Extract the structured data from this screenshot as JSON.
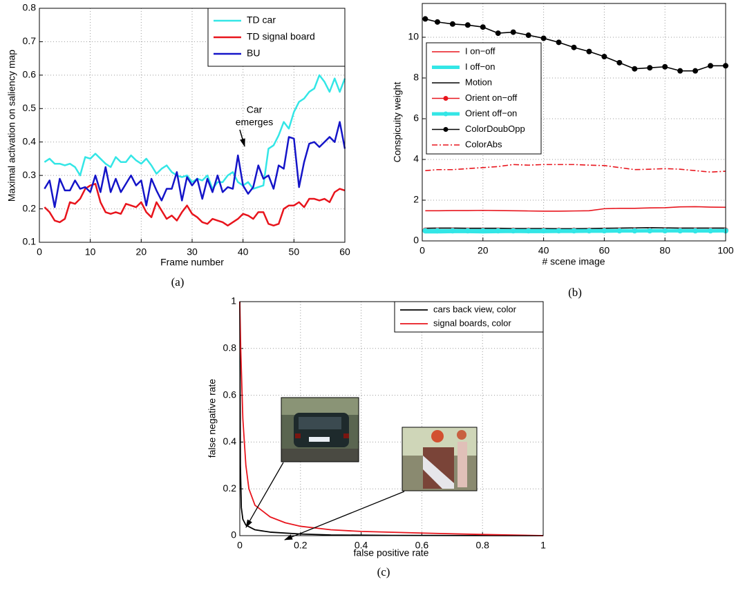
{
  "chart_data": [
    {
      "type": "line",
      "caption": "(a)",
      "xlabel": "Frame number",
      "ylabel": "Maximal activation on saliency map",
      "annotations": [
        "Car",
        "emerges"
      ],
      "x": [
        1,
        2,
        3,
        4,
        5,
        6,
        7,
        8,
        9,
        10,
        11,
        12,
        13,
        14,
        15,
        16,
        17,
        18,
        19,
        20,
        21,
        22,
        23,
        24,
        25,
        26,
        27,
        28,
        29,
        30,
        31,
        32,
        33,
        34,
        35,
        36,
        37,
        38,
        39,
        40,
        41,
        42,
        43,
        44,
        45,
        46,
        47,
        48,
        49,
        50,
        51,
        52,
        53,
        54,
        55,
        56,
        57,
        58,
        59,
        60
      ],
      "series": [
        {
          "name": "TD car",
          "color": "#33e6e6",
          "values": [
            0.34,
            0.35,
            0.335,
            0.335,
            0.33,
            0.335,
            0.325,
            0.3,
            0.355,
            0.35,
            0.365,
            0.35,
            0.335,
            0.325,
            0.355,
            0.34,
            0.34,
            0.36,
            0.345,
            0.335,
            0.35,
            0.33,
            0.305,
            0.32,
            0.33,
            0.31,
            0.3,
            0.295,
            0.3,
            0.28,
            0.29,
            0.285,
            0.3,
            0.26,
            0.28,
            0.28,
            0.3,
            0.31,
            0.28,
            0.27,
            0.28,
            0.26,
            0.265,
            0.27,
            0.38,
            0.39,
            0.42,
            0.46,
            0.44,
            0.49,
            0.52,
            0.53,
            0.55,
            0.56,
            0.6,
            0.58,
            0.55,
            0.59,
            0.55,
            0.59
          ]
        },
        {
          "name": "TD signal board",
          "color": "#e8141c",
          "values": [
            0.205,
            0.19,
            0.165,
            0.16,
            0.17,
            0.22,
            0.215,
            0.23,
            0.26,
            0.27,
            0.275,
            0.22,
            0.19,
            0.185,
            0.19,
            0.185,
            0.215,
            0.21,
            0.205,
            0.22,
            0.19,
            0.175,
            0.22,
            0.195,
            0.17,
            0.18,
            0.165,
            0.19,
            0.21,
            0.185,
            0.175,
            0.16,
            0.155,
            0.17,
            0.165,
            0.16,
            0.15,
            0.16,
            0.17,
            0.185,
            0.18,
            0.17,
            0.19,
            0.19,
            0.155,
            0.15,
            0.155,
            0.2,
            0.21,
            0.21,
            0.22,
            0.205,
            0.23,
            0.23,
            0.225,
            0.23,
            0.22,
            0.25,
            0.26,
            0.255
          ]
        },
        {
          "name": "BU",
          "color": "#1414c8",
          "values": [
            0.26,
            0.285,
            0.205,
            0.29,
            0.255,
            0.255,
            0.285,
            0.26,
            0.265,
            0.25,
            0.3,
            0.25,
            0.325,
            0.25,
            0.29,
            0.25,
            0.275,
            0.3,
            0.27,
            0.285,
            0.21,
            0.29,
            0.255,
            0.225,
            0.26,
            0.26,
            0.31,
            0.225,
            0.295,
            0.27,
            0.29,
            0.23,
            0.29,
            0.25,
            0.3,
            0.25,
            0.265,
            0.26,
            0.36,
            0.27,
            0.245,
            0.265,
            0.33,
            0.29,
            0.3,
            0.26,
            0.33,
            0.32,
            0.415,
            0.41,
            0.265,
            0.34,
            0.395,
            0.4,
            0.385,
            0.4,
            0.415,
            0.4,
            0.46,
            0.38
          ]
        }
      ],
      "xlim": [
        0,
        60
      ],
      "xticks": [
        0,
        10,
        20,
        30,
        40,
        50,
        60
      ],
      "ylim": [
        0.1,
        0.8
      ],
      "yticks": [
        0.1,
        0.2,
        0.3,
        0.4,
        0.5,
        0.6,
        0.7,
        0.8
      ],
      "grid": true,
      "legend": "upper right"
    },
    {
      "type": "line",
      "caption": "(b)",
      "xlabel": "# scene image",
      "ylabel": "Conspicuity weight",
      "x": [
        1,
        5,
        10,
        15,
        20,
        25,
        30,
        35,
        40,
        45,
        50,
        55,
        60,
        65,
        70,
        75,
        80,
        85,
        90,
        95,
        100
      ],
      "series": [
        {
          "name": "I on−off",
          "color": "#e8141c",
          "values": [
            1.48,
            1.48,
            1.49,
            1.49,
            1.5,
            1.49,
            1.48,
            1.47,
            1.46,
            1.46,
            1.47,
            1.48,
            1.58,
            1.6,
            1.6,
            1.62,
            1.63,
            1.67,
            1.68,
            1.66,
            1.65
          ]
        },
        {
          "name": "I off−on",
          "color": "#33e6e6",
          "values": [
            0.45,
            0.45,
            0.46,
            0.46,
            0.45,
            0.46,
            0.47,
            0.46,
            0.46,
            0.47,
            0.47,
            0.48,
            0.48,
            0.49,
            0.49,
            0.5,
            0.5,
            0.5,
            0.49,
            0.49,
            0.5
          ]
        },
        {
          "name": "Motion",
          "color": "#000000",
          "values": [
            0.62,
            0.63,
            0.63,
            0.62,
            0.62,
            0.62,
            0.61,
            0.61,
            0.61,
            0.6,
            0.6,
            0.61,
            0.62,
            0.63,
            0.64,
            0.65,
            0.64,
            0.63,
            0.63,
            0.63,
            0.63
          ]
        },
        {
          "name": "Orient on−off",
          "color": "#e8141c",
          "marker": "o",
          "values": [
            0.52,
            0.52,
            0.52,
            0.52,
            0.52,
            0.52,
            0.52,
            0.52,
            0.52,
            0.52,
            0.52,
            0.52,
            0.52,
            0.52,
            0.52,
            0.52,
            0.52,
            0.52,
            0.52,
            0.52,
            0.52
          ]
        },
        {
          "name": "Orient off−on",
          "color": "#33e6e6",
          "marker": "o",
          "values": [
            0.5,
            0.5,
            0.5,
            0.5,
            0.5,
            0.5,
            0.5,
            0.5,
            0.5,
            0.5,
            0.5,
            0.5,
            0.5,
            0.5,
            0.5,
            0.5,
            0.5,
            0.5,
            0.5,
            0.5,
            0.5
          ]
        },
        {
          "name": "ColorDoubOpp",
          "color": "#000000",
          "marker": "o",
          "values": [
            10.9,
            10.75,
            10.65,
            10.6,
            10.5,
            10.2,
            10.25,
            10.1,
            9.95,
            9.75,
            9.5,
            9.3,
            9.05,
            8.75,
            8.45,
            8.5,
            8.55,
            8.35,
            8.35,
            8.6,
            8.6
          ]
        },
        {
          "name": "ColorAbs",
          "color": "#e8141c",
          "linestyle": "dash-dot",
          "values": [
            3.45,
            3.5,
            3.5,
            3.55,
            3.6,
            3.65,
            3.75,
            3.72,
            3.75,
            3.75,
            3.75,
            3.72,
            3.7,
            3.6,
            3.5,
            3.52,
            3.55,
            3.52,
            3.45,
            3.38,
            3.42
          ]
        }
      ],
      "xlim": [
        0,
        100
      ],
      "xticks": [
        0,
        20,
        40,
        60,
        80,
        100
      ],
      "ylim": [
        0,
        11.66
      ],
      "yticks": [
        0,
        2,
        4,
        6,
        8,
        10
      ],
      "grid": true,
      "legend": "upper left"
    },
    {
      "type": "line",
      "caption": "(c)",
      "xlabel": "false positive rate",
      "ylabel": "false negative rate",
      "series": [
        {
          "name": "cars back view, color",
          "color": "#000000",
          "x": [
            0,
            0.002,
            0.005,
            0.01,
            0.02,
            0.05,
            0.1,
            0.2,
            0.3,
            0.5,
            1
          ],
          "values": [
            1,
            0.3,
            0.12,
            0.07,
            0.045,
            0.025,
            0.015,
            0.007,
            0.003,
            0.001,
            0
          ]
        },
        {
          "name": "signal boards, color",
          "color": "#e8141c",
          "x": [
            0,
            0.003,
            0.01,
            0.02,
            0.03,
            0.05,
            0.08,
            0.1,
            0.15,
            0.2,
            0.3,
            0.4,
            0.6,
            0.8,
            1
          ],
          "values": [
            1,
            0.8,
            0.5,
            0.3,
            0.2,
            0.13,
            0.1,
            0.08,
            0.055,
            0.04,
            0.025,
            0.018,
            0.011,
            0.005,
            0
          ]
        }
      ],
      "xlim": [
        0,
        1
      ],
      "xticks": [
        0,
        0.2,
        0.4,
        0.6,
        0.8,
        1
      ],
      "ylim": [
        0,
        1
      ],
      "yticks": [
        0,
        0.2,
        0.4,
        0.6,
        0.8,
        1
      ],
      "grid": true,
      "legend": "upper right"
    }
  ]
}
